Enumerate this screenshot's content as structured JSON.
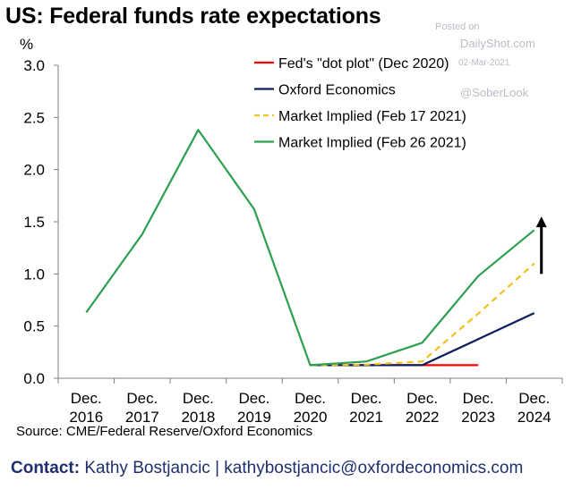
{
  "header": {
    "title": "US: Federal funds rate expectations"
  },
  "watermark": {
    "posted": "Posted on",
    "site": "DailyShot.com",
    "date": "02-Mar-2021",
    "handle": "@SoberLook"
  },
  "footer": {
    "source": "Source: CME/Federal Reserve/Oxford Economics",
    "contact_label": "Contact:",
    "contact_text": "Kathy Bostjancic | kathybostjancic@oxfordeconomics.com"
  },
  "chart_data": {
    "type": "line",
    "title": "US: Federal funds rate expectations",
    "ylabel": "%",
    "xlabel": "",
    "ylim": [
      0,
      3
    ],
    "yticks": [
      "0.0",
      "0.5",
      "1.0",
      "1.5",
      "2.0",
      "2.5",
      "3.0"
    ],
    "categories": [
      [
        "Dec.",
        "2016"
      ],
      [
        "Dec.",
        "2017"
      ],
      [
        "Dec.",
        "2018"
      ],
      [
        "Dec.",
        "2019"
      ],
      [
        "Dec.",
        "2020"
      ],
      [
        "Dec.",
        "2021"
      ],
      [
        "Dec.",
        "2022"
      ],
      [
        "Dec.",
        "2023"
      ],
      [
        "Dec.",
        "2024"
      ]
    ],
    "grid": false,
    "legend_position": "top-right",
    "series": [
      {
        "name": "Fed's \"dot plot\" (Dec 2020)",
        "color": "#ff0000",
        "dash": false,
        "values": [
          null,
          null,
          null,
          null,
          0.125,
          0.125,
          0.125,
          0.125,
          null
        ]
      },
      {
        "name": "Oxford Economics",
        "color": "#0c1d5e",
        "dash": false,
        "values": [
          null,
          null,
          null,
          null,
          0.125,
          0.125,
          0.125,
          0.375,
          0.625
        ]
      },
      {
        "name": "Market Implied (Feb 17 2021)",
        "color": "#f2c01e",
        "dash": true,
        "values": [
          null,
          null,
          null,
          null,
          0.125,
          0.13,
          0.16,
          0.62,
          1.1
        ]
      },
      {
        "name": "Market Implied (Feb 26 2021)",
        "color": "#2ca050",
        "dash": false,
        "values": [
          0.63,
          1.38,
          2.38,
          1.62,
          0.125,
          0.16,
          0.34,
          0.98,
          1.42
        ]
      }
    ],
    "annotations": [
      {
        "type": "arrow",
        "direction": "up",
        "category_index": 8,
        "from": 1.0,
        "to": 1.55,
        "color": "#000000"
      }
    ]
  }
}
